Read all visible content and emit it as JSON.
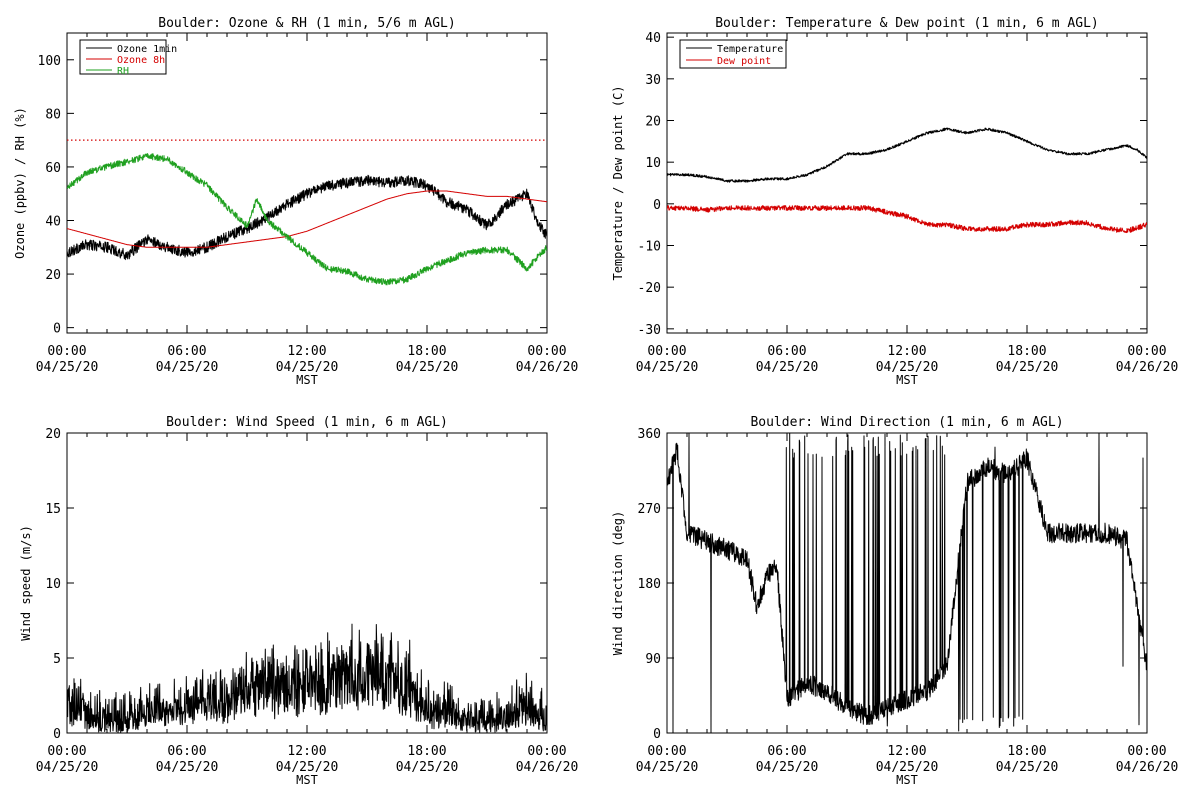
{
  "colors": {
    "black": "#000000",
    "red": "#d40000",
    "green": "#1fa01f"
  },
  "chart_data": [
    {
      "type": "line",
      "title": "Boulder: Ozone & RH (1 min, 5/6 m AGL)",
      "xlabel": "MST",
      "ylabel": "Ozone (ppbv) / RH (%)",
      "xlim": [
        0,
        24
      ],
      "ylim": [
        -2,
        110
      ],
      "yticks": [
        0,
        20,
        40,
        60,
        80,
        100
      ],
      "xticks_time": [
        "00:00",
        "06:00",
        "12:00",
        "18:00",
        "00:00"
      ],
      "xticks_date": [
        "04/25/20",
        "04/25/20",
        "04/25/20",
        "04/25/20",
        "04/26/20"
      ],
      "legend": {
        "position": "top-left",
        "entries": [
          "Ozone 1min",
          "Ozone 8h",
          "RH"
        ]
      },
      "threshold": {
        "value": 70,
        "style": "dotted",
        "color": "#d40000"
      },
      "series": [
        {
          "name": "Ozone 1min",
          "color": "#000000",
          "noise": 2.0,
          "x": [
            0,
            1,
            2,
            3,
            4,
            5,
            6,
            7,
            8,
            9,
            10,
            11,
            12,
            13,
            14,
            15,
            16,
            17,
            18,
            19,
            20,
            21,
            22,
            23,
            23.5,
            24
          ],
          "y": [
            28,
            31,
            30,
            27,
            33,
            30,
            28,
            30,
            34,
            37,
            41,
            46,
            50,
            53,
            54,
            55,
            54,
            55,
            53,
            47,
            44,
            38,
            46,
            50,
            40,
            34
          ]
        },
        {
          "name": "Ozone 8h",
          "color": "#d40000",
          "noise": 0,
          "x": [
            0,
            1,
            2,
            3,
            4,
            5,
            6,
            7,
            8,
            9,
            10,
            11,
            12,
            13,
            14,
            15,
            16,
            17,
            18,
            19,
            20,
            21,
            22,
            23,
            24
          ],
          "y": [
            37,
            35,
            33,
            31,
            30,
            30,
            30,
            30,
            31,
            32,
            33,
            34,
            36,
            39,
            42,
            45,
            48,
            50,
            51,
            51,
            50,
            49,
            49,
            48,
            47
          ]
        },
        {
          "name": "RH",
          "color": "#1fa01f",
          "noise": 1.2,
          "x": [
            0,
            1,
            2,
            3,
            4,
            5,
            6,
            7,
            8,
            9,
            9.5,
            10,
            11,
            12,
            13,
            14,
            15,
            16,
            17,
            18,
            19,
            20,
            21,
            22,
            23,
            24
          ],
          "y": [
            52,
            58,
            60,
            62,
            64,
            63,
            58,
            53,
            45,
            38,
            48,
            40,
            34,
            28,
            22,
            21,
            18,
            17,
            18,
            22,
            25,
            28,
            29,
            29,
            22,
            30
          ]
        }
      ]
    },
    {
      "type": "line",
      "title": "Boulder: Temperature & Dew point (1 min, 6 m AGL)",
      "xlabel": "MST",
      "ylabel": "Temperature / Dew point (C)",
      "xlim": [
        0,
        24
      ],
      "ylim": [
        -31,
        41
      ],
      "yticks": [
        -30,
        -20,
        -10,
        0,
        10,
        20,
        30,
        40
      ],
      "xticks_time": [
        "00:00",
        "06:00",
        "12:00",
        "18:00",
        "00:00"
      ],
      "xticks_date": [
        "04/25/20",
        "04/25/20",
        "04/25/20",
        "04/25/20",
        "04/26/20"
      ],
      "legend": {
        "position": "top-left",
        "entries": [
          "Temperature",
          "Dew point"
        ]
      },
      "series": [
        {
          "name": "Temperature",
          "color": "#000000",
          "noise": 0.3,
          "x": [
            0,
            1,
            2,
            3,
            4,
            5,
            6,
            7,
            8,
            9,
            10,
            11,
            12,
            13,
            14,
            15,
            16,
            17,
            18,
            19,
            20,
            21,
            22,
            23,
            23.5,
            24
          ],
          "y": [
            7,
            7,
            6.5,
            5.5,
            5.5,
            6,
            6,
            7,
            9,
            12,
            12,
            13,
            15,
            17,
            18,
            17,
            18,
            17,
            15,
            13,
            12,
            12,
            13,
            14,
            13,
            11
          ]
        },
        {
          "name": "Dew point",
          "color": "#d40000",
          "noise": 0.6,
          "x": [
            0,
            1,
            2,
            3,
            4,
            5,
            6,
            7,
            8,
            9,
            10,
            11,
            12,
            13,
            14,
            15,
            16,
            17,
            18,
            19,
            20,
            21,
            22,
            23,
            24
          ],
          "y": [
            -1,
            -1,
            -1.5,
            -1,
            -1,
            -1,
            -1,
            -1,
            -1,
            -1,
            -1,
            -2,
            -3,
            -5,
            -5,
            -6,
            -6,
            -6,
            -5,
            -5,
            -4.5,
            -4.5,
            -6,
            -6.5,
            -5
          ]
        }
      ]
    },
    {
      "type": "line",
      "title": "Boulder: Wind Speed (1 min, 6 m AGL)",
      "xlabel": "MST",
      "ylabel": "Wind speed (m/s)",
      "xlim": [
        0,
        24
      ],
      "ylim": [
        0,
        20
      ],
      "yticks": [
        0,
        5,
        10,
        15,
        20
      ],
      "xticks_time": [
        "00:00",
        "06:00",
        "12:00",
        "18:00",
        "00:00"
      ],
      "xticks_date": [
        "04/25/20",
        "04/25/20",
        "04/25/20",
        "04/25/20",
        "04/26/20"
      ],
      "series": [
        {
          "name": "",
          "color": "#000000",
          "noise": 1.0,
          "x": [
            0,
            1,
            2,
            3,
            4,
            5,
            6,
            7,
            8,
            9,
            10,
            11,
            12,
            13,
            14,
            15,
            16,
            17,
            18,
            19,
            20,
            21,
            22,
            23,
            24
          ],
          "y": [
            2,
            1.2,
            1,
            1,
            1.5,
            2,
            2,
            2.5,
            2,
            3,
            3.5,
            3,
            3.5,
            3.5,
            4,
            4,
            4,
            3.5,
            1.5,
            1.5,
            1,
            1,
            1.2,
            2,
            1
          ]
        }
      ]
    },
    {
      "type": "line",
      "title": "Boulder: Wind Direction (1 min, 6 m AGL)",
      "xlabel": "MST",
      "ylabel": "Wind direction (deg)",
      "xlim": [
        0,
        24
      ],
      "ylim": [
        0,
        360
      ],
      "yticks": [
        0,
        90,
        180,
        270,
        360
      ],
      "xticks_time": [
        "00:00",
        "06:00",
        "12:00",
        "18:00",
        "00:00"
      ],
      "xticks_date": [
        "04/25/20",
        "04/25/20",
        "04/25/20",
        "04/25/20",
        "04/26/20"
      ],
      "series": [
        {
          "name": "",
          "color": "#000000",
          "noise": 12,
          "x": [
            0,
            0.5,
            1,
            2,
            3,
            4,
            4.5,
            5,
            5.5,
            6,
            7,
            8,
            9,
            10,
            11,
            12,
            13,
            14,
            15,
            16,
            17,
            18,
            19,
            20,
            21,
            22,
            23,
            24
          ],
          "y": [
            300,
            340,
            240,
            230,
            220,
            210,
            150,
            190,
            200,
            40,
            60,
            50,
            30,
            20,
            30,
            40,
            50,
            80,
            300,
            320,
            310,
            330,
            240,
            240,
            240,
            240,
            230,
            80
          ],
          "spikes": {
            "from": 5.5,
            "to": 18,
            "count": 75
          }
        }
      ]
    }
  ]
}
